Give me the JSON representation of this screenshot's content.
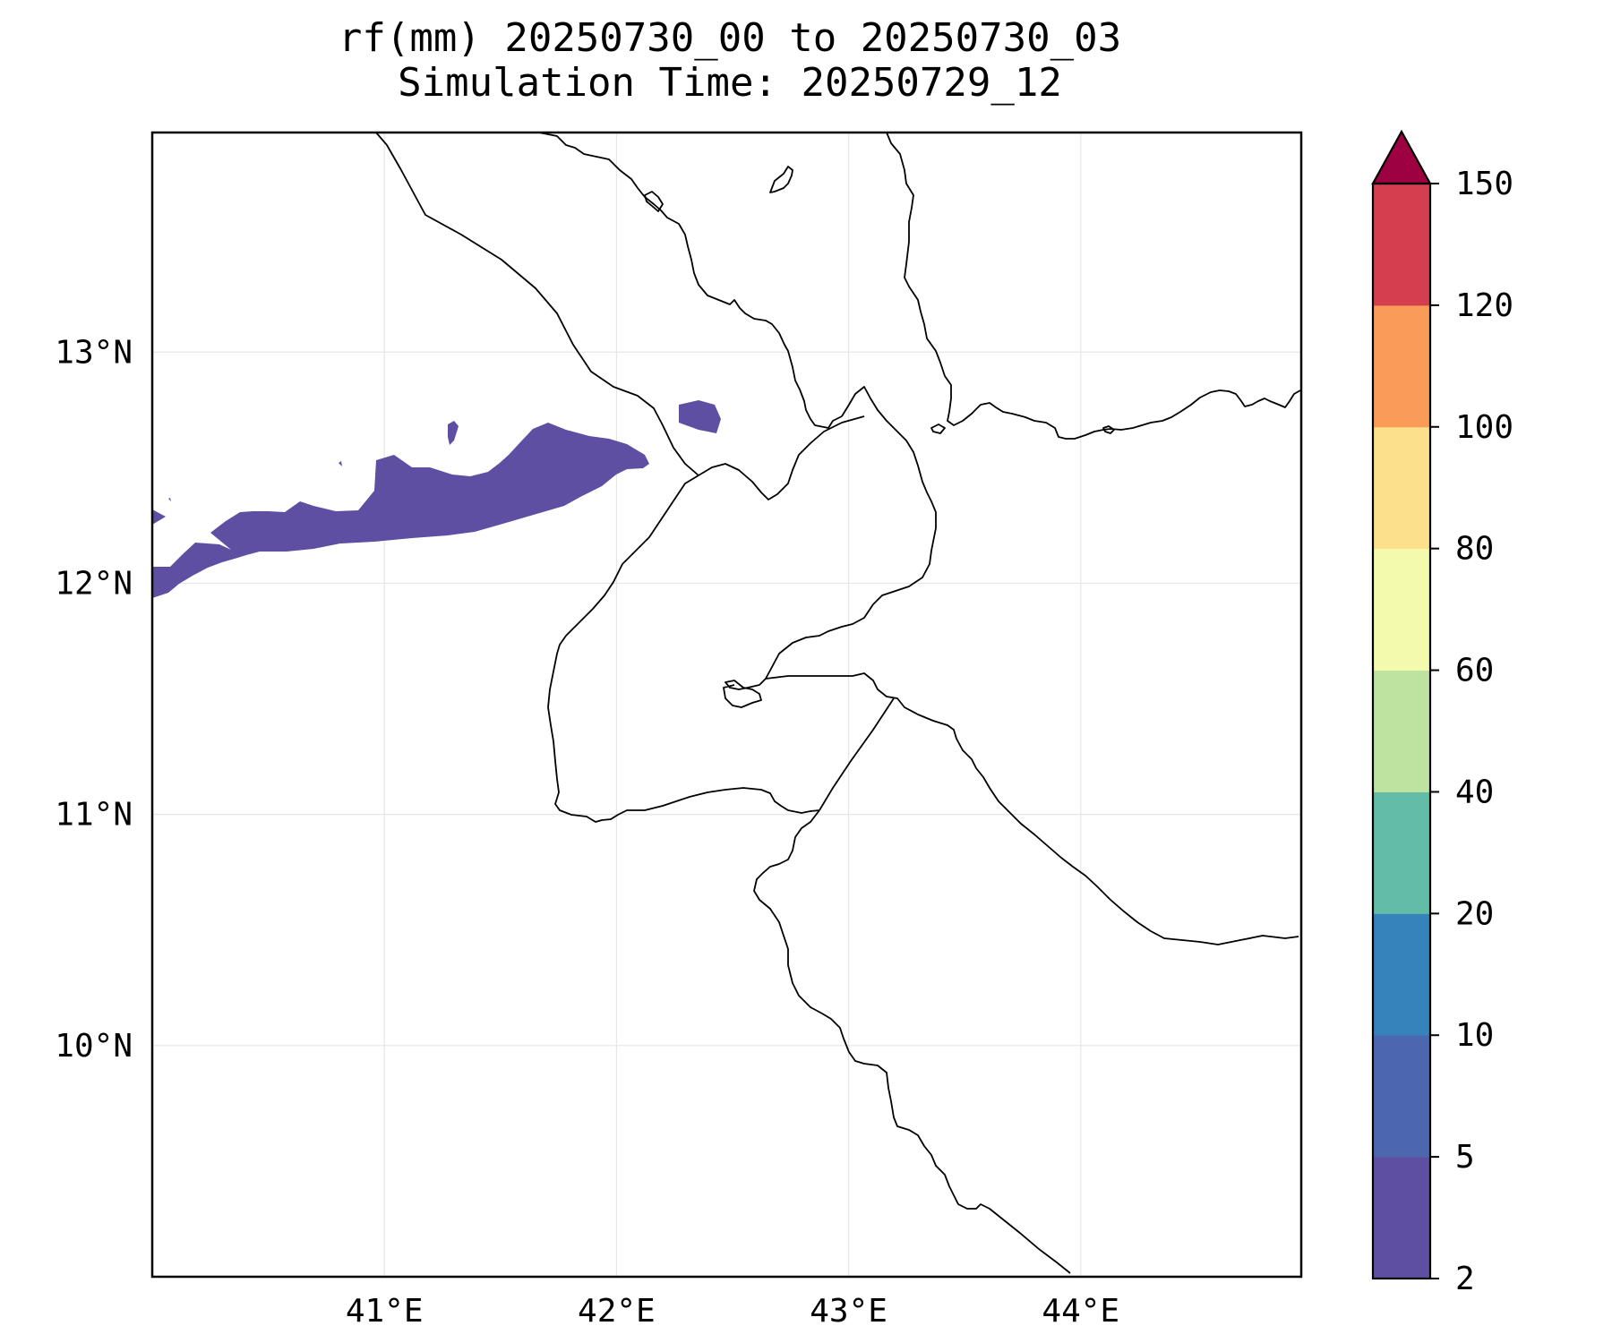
{
  "title": {
    "line1": "rf(mm) 20250730_00 to 20250730_03",
    "line2": "Simulation Time: 20250729_12"
  },
  "map": {
    "lon_range": [
      40.0,
      44.95
    ],
    "lat_range": [
      9.0,
      13.95
    ],
    "lon_ticks": [
      {
        "value": 41,
        "label": "41°E"
      },
      {
        "value": 42,
        "label": "42°E"
      },
      {
        "value": 43,
        "label": "43°E"
      },
      {
        "value": 44,
        "label": "44°E"
      }
    ],
    "lat_ticks": [
      {
        "value": 13,
        "label": "13°N"
      },
      {
        "value": 12,
        "label": "12°N"
      },
      {
        "value": 11,
        "label": "11°N"
      },
      {
        "value": 10,
        "label": "10°N"
      }
    ],
    "gridlines": true
  },
  "colorbar": {
    "extend": "max",
    "extend_color": "#9e0142",
    "levels": [
      {
        "label": "2"
      },
      {
        "label": "5"
      },
      {
        "label": "10"
      },
      {
        "label": "20"
      },
      {
        "label": "40"
      },
      {
        "label": "60"
      },
      {
        "label": "80"
      },
      {
        "label": "100"
      },
      {
        "label": "120"
      },
      {
        "label": "150"
      }
    ],
    "colors": [
      "#5e4fa2",
      "#4c67ad",
      "#3682ba",
      "#62bca6",
      "#bde3a0",
      "#f4faad",
      "#fde08b",
      "#fa9c58",
      "#d53e4f"
    ]
  },
  "rainfall_areas": [
    {
      "level": "2-5 mm",
      "color": "#5e4fa2",
      "region": "main band over northern Ethiopia / Afar"
    },
    {
      "level": "2-5 mm",
      "color": "#5e4fa2",
      "region": "small patch near 42.4E 12.7N"
    }
  ]
}
